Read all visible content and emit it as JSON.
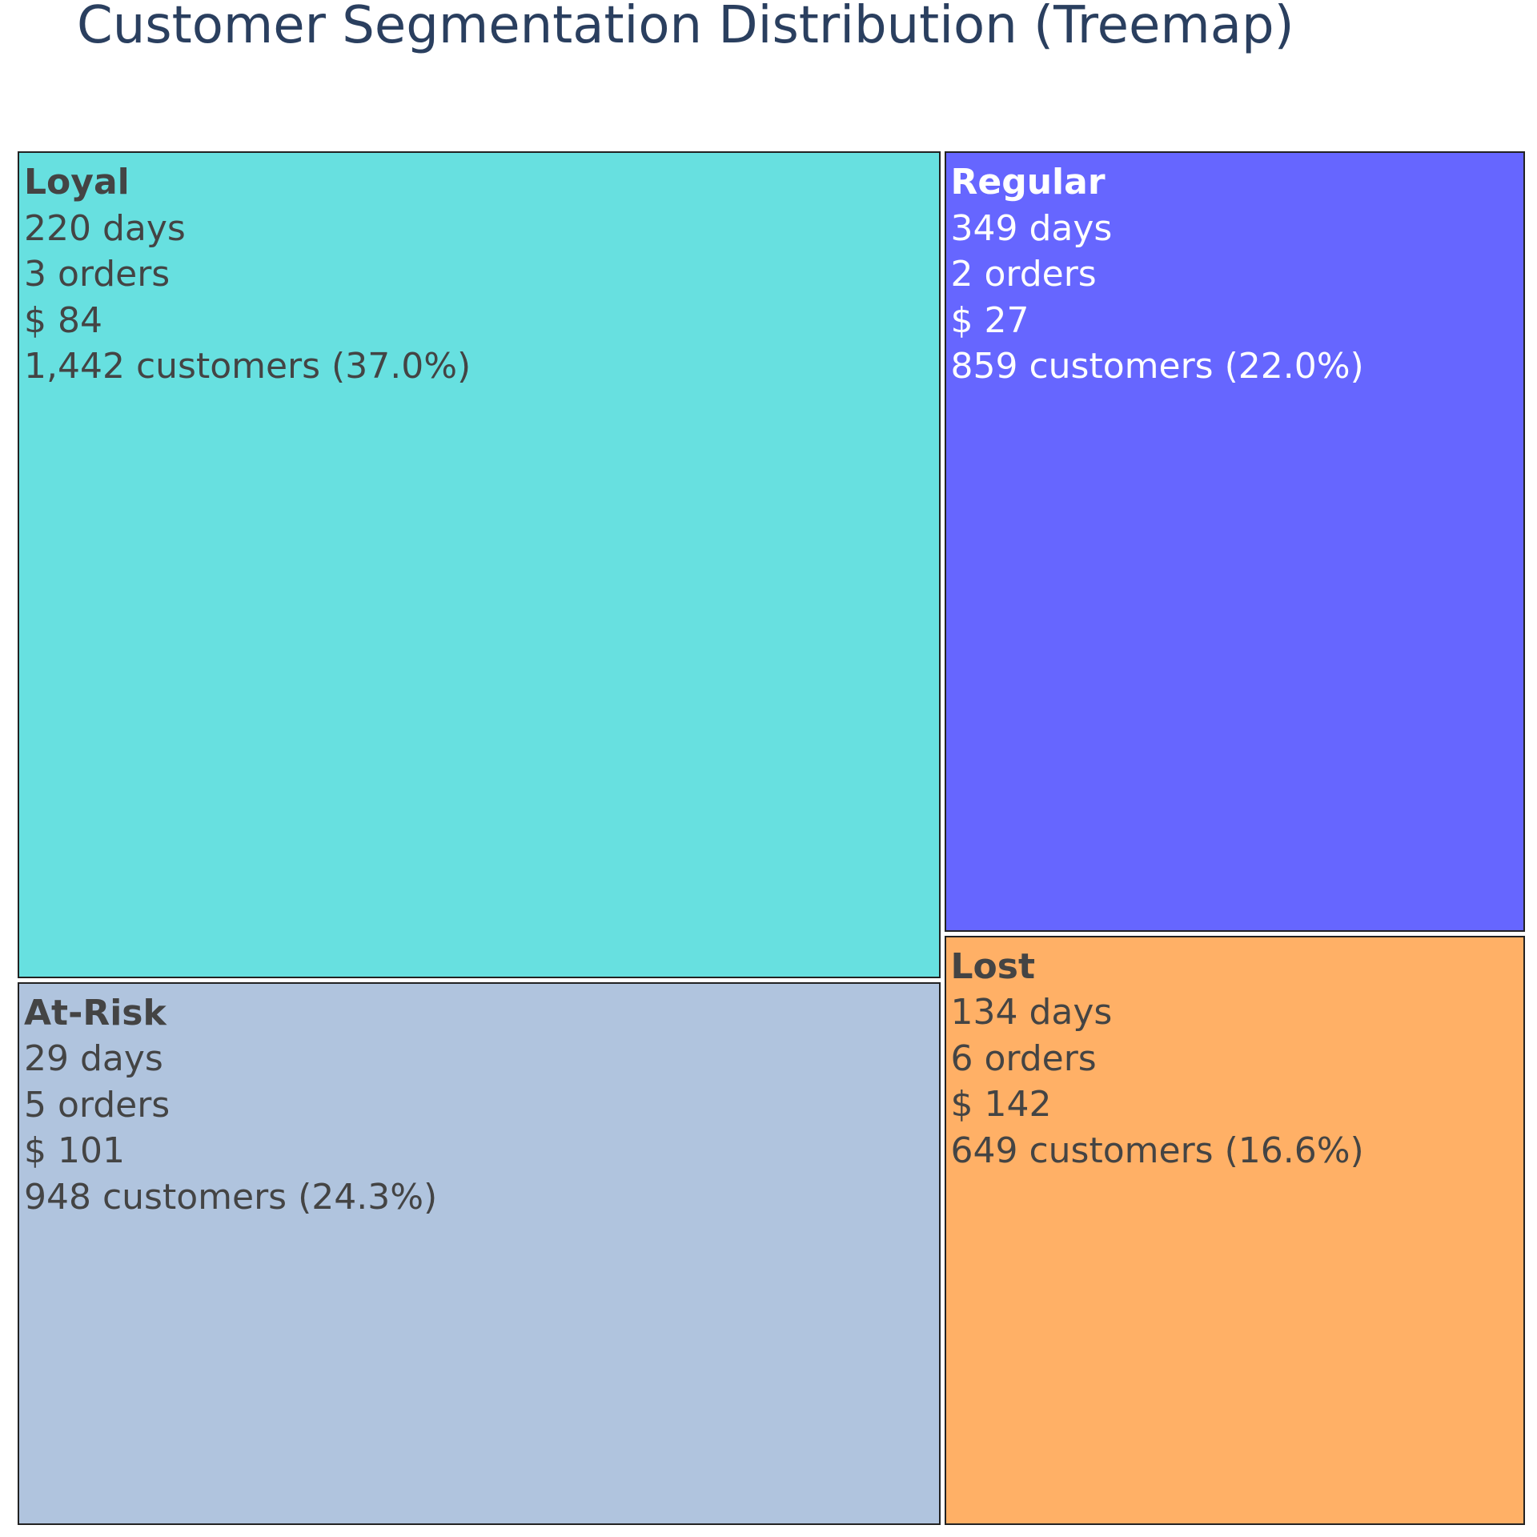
{
  "chart_data": {
    "type": "treemap",
    "title": "Customer Segmentation Distribution (Treemap)",
    "segments": [
      {
        "key": "loyal",
        "label": "Loyal",
        "recency": "220 days",
        "frequency": "3 orders",
        "monetary": "$ 84",
        "customers": 1442,
        "percent": 37.0,
        "customers_text": "1,442 customers (37.0%)",
        "color": "#67e0e0",
        "text_color": "#444444"
      },
      {
        "key": "regular",
        "label": "Regular",
        "recency": "349 days",
        "frequency": "2 orders",
        "monetary": "$ 27",
        "customers": 859,
        "percent": 22.0,
        "customers_text": "859 customers (22.0%)",
        "color": "#6666ff",
        "text_color": "#ffffff"
      },
      {
        "key": "atrisk",
        "label": "At-Risk",
        "recency": "29 days",
        "frequency": "5 orders",
        "monetary": "$ 101",
        "customers": 948,
        "percent": 24.3,
        "customers_text": "948 customers (24.3%)",
        "color": "#b0c4de",
        "text_color": "#444444"
      },
      {
        "key": "lost",
        "label": "Lost",
        "recency": "134 days",
        "frequency": "6 orders",
        "monetary": "$ 142",
        "customers": 649,
        "percent": 16.6,
        "customers_text": "649 customers (16.6%)",
        "color": "#ffb066",
        "text_color": "#444444"
      }
    ]
  }
}
